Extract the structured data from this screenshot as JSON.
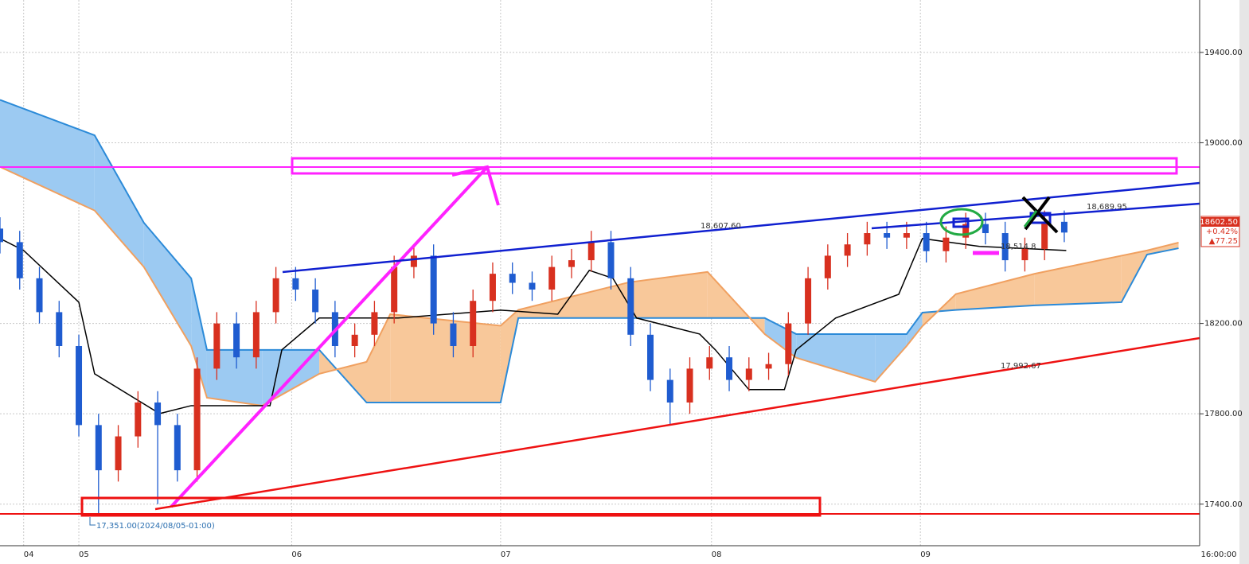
{
  "chart_data": {
    "type": "candlestick",
    "open": [
      18620,
      18560,
      18400,
      18250,
      18100,
      17750,
      17550,
      17700,
      17850,
      17750,
      17550,
      18000,
      18200,
      18050,
      18250,
      18400,
      18350,
      18250,
      18100,
      18150,
      18250,
      18450,
      18500,
      18200,
      18100,
      18300,
      18420,
      18380,
      18350,
      18450,
      18480,
      18560,
      18400,
      18150,
      17950,
      17850,
      18000,
      18050,
      17950,
      18000,
      18020,
      18200,
      18400,
      18500,
      18550,
      18600,
      18580,
      18600,
      18520,
      18580,
      18640,
      18600,
      18480,
      18530,
      18650
    ],
    "high": [
      18670,
      18610,
      18450,
      18300,
      18150,
      17800,
      17750,
      17900,
      17900,
      17800,
      18050,
      18250,
      18250,
      18300,
      18450,
      18450,
      18400,
      18300,
      18200,
      18300,
      18500,
      18550,
      18550,
      18250,
      18350,
      18470,
      18470,
      18430,
      18500,
      18530,
      18610,
      18610,
      18450,
      18200,
      18000,
      18050,
      18100,
      18100,
      18050,
      18070,
      18250,
      18450,
      18550,
      18600,
      18650,
      18650,
      18650,
      18650,
      18630,
      18690,
      18690,
      18650,
      18580,
      18700,
      18700
    ],
    "low": [
      18510,
      18350,
      18200,
      18050,
      17700,
      17351,
      17500,
      17650,
      17400,
      17500,
      17500,
      17950,
      18000,
      18000,
      18200,
      18300,
      18200,
      18050,
      18050,
      18100,
      18200,
      18400,
      18150,
      18050,
      18050,
      18250,
      18330,
      18300,
      18300,
      18400,
      18430,
      18350,
      18100,
      17900,
      17750,
      17800,
      17950,
      17900,
      17900,
      17950,
      17970,
      18150,
      18350,
      18450,
      18500,
      18530,
      18530,
      18470,
      18470,
      18530,
      18550,
      18430,
      18430,
      18480,
      18560
    ],
    "close": [
      18560,
      18400,
      18250,
      18100,
      17750,
      17550,
      17700,
      17850,
      17750,
      17550,
      18000,
      18200,
      18050,
      18250,
      18400,
      18350,
      18250,
      18100,
      18150,
      18250,
      18450,
      18500,
      18200,
      18100,
      18300,
      18420,
      18380,
      18350,
      18450,
      18480,
      18560,
      18400,
      18150,
      17950,
      17850,
      18000,
      18050,
      17950,
      18000,
      18020,
      18200,
      18400,
      18500,
      18550,
      18600,
      18580,
      18600,
      18520,
      18580,
      18640,
      18600,
      18480,
      18530,
      18650,
      18602.5
    ],
    "up_color": "#d8301f",
    "down_color": "#1f5cd0",
    "cloud": {
      "x": [
        0,
        4.8,
        7.3,
        9.7,
        10.5,
        13.3,
        16.2,
        18.6,
        19.8,
        25.4,
        26.3,
        31.9,
        35.9,
        38.8,
        40.4,
        44.4,
        46,
        46.8,
        48.5,
        52.5,
        56.9,
        58.2,
        59.8
      ],
      "a": [
        19190,
        19033,
        18646,
        18400,
        18083,
        18083,
        18083,
        17850,
        17850,
        17850,
        18224,
        18224,
        18224,
        18224,
        18153,
        18153,
        18153,
        18248,
        18260,
        18280,
        18294,
        18505,
        18533
      ],
      "b": [
        18893,
        18700,
        18450,
        18100,
        17871,
        17836,
        17977,
        18030,
        18241,
        18190,
        18260,
        18382,
        18428,
        18153,
        18048,
        17942,
        18100,
        18188,
        18330,
        18420,
        18500,
        18523,
        18558
      ],
      "a_color": "#2b8ad8",
      "b_color": "#f0a060",
      "fill_a": "#9ccaf2",
      "fill_b": "#f8c89a"
    },
    "baseline": {
      "color": "#000000",
      "x": [
        0,
        1.2,
        4,
        4.8,
        8.1,
        9.7,
        13.7,
        14.3,
        16.2,
        20.2,
        25.4,
        28.3,
        29.9,
        31.1,
        32.3,
        35.5,
        36.3,
        38,
        39.8,
        40.4,
        42.4,
        45.6,
        46.8,
        49.7,
        54.1
      ],
      "values": [
        18576,
        18523,
        18294,
        17977,
        17801,
        17836,
        17836,
        18083,
        18224,
        18224,
        18259,
        18241,
        18435,
        18400,
        18224,
        18153,
        18083,
        17907,
        17907,
        18083,
        18224,
        18329,
        18576,
        18541,
        18523
      ]
    },
    "xlim": [
      0,
      62
    ],
    "ylim": [
      17216,
      19632
    ],
    "xticks": [
      {
        "value": 1.2,
        "label": "04"
      },
      {
        "value": 4,
        "label": "05"
      },
      {
        "value": 14.8,
        "label": "06"
      },
      {
        "value": 25.4,
        "label": "07"
      },
      {
        "value": 36.1,
        "label": "08"
      },
      {
        "value": 46.7,
        "label": "09"
      },
      {
        "value": 62,
        "label": "16:00:00"
      }
    ],
    "yticks": [
      {
        "value": 17400,
        "label": "17400.00"
      },
      {
        "value": 17800,
        "label": "17800.00"
      },
      {
        "value": 18200,
        "label": "18200.00"
      },
      {
        "value": 19000,
        "label": "19000.00"
      },
      {
        "value": 19400,
        "label": "19400.00"
      }
    ],
    "grid": true,
    "annotations": [
      "18,607.60",
      "18,689.95",
      "18,514.8",
      "17,992.67",
      "17,351.00(2024/08/05-01:00)"
    ],
    "price_box": [
      "18602.50",
      "+0.42%",
      "▲77.25"
    ]
  }
}
